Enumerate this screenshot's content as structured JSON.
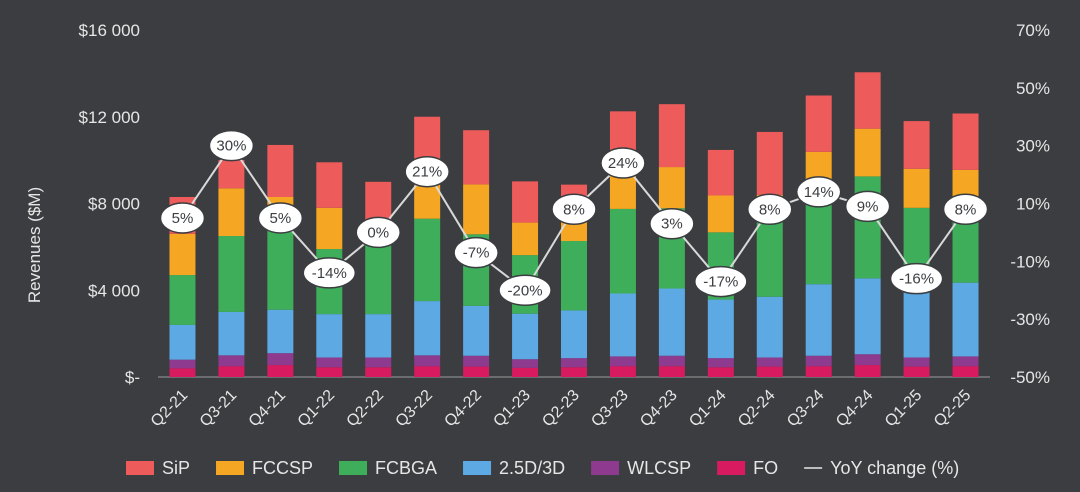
{
  "chart_data": {
    "type": "bar",
    "stacked": true,
    "ylabel": "Revenues ($M)",
    "ylim": [
      0,
      16000
    ],
    "y_ticks": [
      "$-",
      "$4 000",
      "$8 000",
      "$12 000",
      "$16 000"
    ],
    "y2lim": [
      -50,
      70
    ],
    "y2_ticks": [
      "-50%",
      "-30%",
      "-10%",
      "10%",
      "30%",
      "50%",
      "70%"
    ],
    "categories": [
      "Q2-21",
      "Q3-21",
      "Q4-21",
      "Q1-22",
      "Q2-22",
      "Q3-22",
      "Q4-22",
      "Q1-23",
      "Q2-23",
      "Q3-23",
      "Q4-23",
      "Q1-24",
      "Q2-24",
      "Q3-24",
      "Q4-24",
      "Q1-25",
      "Q2-25"
    ],
    "series": [
      {
        "name": "FO",
        "color": "#d81b60",
        "values": [
          400,
          500,
          550,
          450,
          450,
          500,
          480,
          420,
          450,
          500,
          500,
          450,
          480,
          500,
          550,
          480,
          500
        ]
      },
      {
        "name": "WLCSP",
        "color": "#8e3a8e",
        "values": [
          400,
          500,
          550,
          450,
          450,
          500,
          500,
          400,
          420,
          450,
          480,
          420,
          420,
          480,
          500,
          420,
          450
        ]
      },
      {
        "name": "2.5D/3D",
        "color": "#5da9e3",
        "values": [
          1600,
          2000,
          2000,
          2000,
          2000,
          2500,
          2300,
          2100,
          2200,
          2900,
          3100,
          2700,
          2800,
          3300,
          3500,
          3300,
          3400
        ]
      },
      {
        "name": "FCBGA",
        "color": "#3fae5a",
        "values": [
          2300,
          3500,
          4000,
          3000,
          3400,
          3800,
          3300,
          2700,
          3200,
          3900,
          3700,
          3100,
          4100,
          4800,
          4700,
          3600,
          3500
        ]
      },
      {
        "name": "FCCSP",
        "color": "#f5a623",
        "values": [
          1900,
          2200,
          1200,
          1900,
          500,
          1700,
          2300,
          1500,
          1100,
          1600,
          1900,
          1700,
          600,
          1300,
          2200,
          1800,
          1700
        ]
      },
      {
        "name": "SiP",
        "color": "#ee5b5b",
        "values": [
          1700,
          1300,
          2400,
          2100,
          2200,
          3000,
          2500,
          1900,
          1500,
          2900,
          2900,
          2100,
          2900,
          2600,
          2600,
          2200,
          2600
        ]
      }
    ],
    "yoy_series": {
      "name": "YoY change (%)",
      "values": [
        5,
        30,
        5,
        -14,
        0,
        21,
        -7,
        -20,
        8,
        24,
        3,
        -17,
        8,
        14,
        9,
        -16,
        8
      ],
      "labels": [
        "5%",
        "30%",
        "5%",
        "-14%",
        "0%",
        "21%",
        "-7%",
        "-20%",
        "8%",
        "24%",
        "3%",
        "-17%",
        "8%",
        "14%",
        "9%",
        "-16%",
        "8%"
      ]
    },
    "legend": {
      "placement": "bottom",
      "entries": [
        "SiP",
        "FCCSP",
        "FCBGA",
        "2.5D/3D",
        "WLCSP",
        "FO",
        "YoY change (%)"
      ],
      "colors": [
        "#ee5b5b",
        "#f5a623",
        "#3fae5a",
        "#5da9e3",
        "#8e3a8e",
        "#d81b60",
        "#bdbdbd"
      ]
    },
    "grid": false
  }
}
